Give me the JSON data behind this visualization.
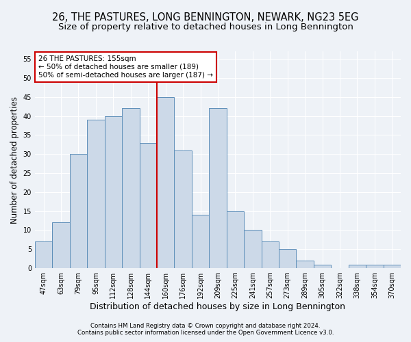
{
  "title": "26, THE PASTURES, LONG BENNINGTON, NEWARK, NG23 5EG",
  "subtitle": "Size of property relative to detached houses in Long Bennington",
  "xlabel": "Distribution of detached houses by size in Long Bennington",
  "ylabel": "Number of detached properties",
  "categories": [
    "47sqm",
    "63sqm",
    "79sqm",
    "95sqm",
    "112sqm",
    "128sqm",
    "144sqm",
    "160sqm",
    "176sqm",
    "192sqm",
    "209sqm",
    "225sqm",
    "241sqm",
    "257sqm",
    "273sqm",
    "289sqm",
    "305sqm",
    "322sqm",
    "338sqm",
    "354sqm",
    "370sqm"
  ],
  "values": [
    7,
    12,
    30,
    39,
    40,
    42,
    33,
    45,
    31,
    14,
    42,
    15,
    10,
    7,
    5,
    2,
    1,
    0,
    1,
    1,
    1
  ],
  "bar_color": "#ccd9e8",
  "bar_edge_color": "#5b8db8",
  "bar_width": 1.0,
  "vline_x": 6.5,
  "vline_color": "#cc0000",
  "annotation_text": "26 THE PASTURES: 155sqm\n← 50% of detached houses are smaller (189)\n50% of semi-detached houses are larger (187) →",
  "annotation_box_color": "#ffffff",
  "annotation_box_edge": "#cc0000",
  "ylim": [
    0,
    57
  ],
  "yticks": [
    0,
    5,
    10,
    15,
    20,
    25,
    30,
    35,
    40,
    45,
    50,
    55
  ],
  "title_fontsize": 10.5,
  "subtitle_fontsize": 9.5,
  "xlabel_fontsize": 9,
  "ylabel_fontsize": 8.5,
  "tick_fontsize": 7,
  "ann_fontsize": 7.5,
  "footer_line1": "Contains HM Land Registry data © Crown copyright and database right 2024.",
  "footer_line2": "Contains public sector information licensed under the Open Government Licence v3.0.",
  "background_color": "#eef2f7",
  "plot_background_color": "#eef2f7",
  "grid_color": "#ffffff"
}
